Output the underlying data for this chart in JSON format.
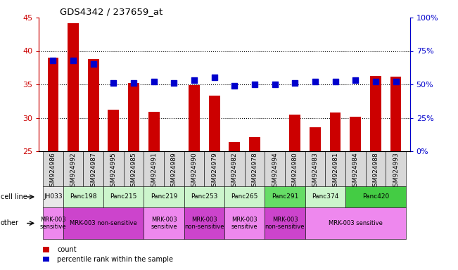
{
  "title": "GDS4342 / 237659_at",
  "samples": [
    "GSM924986",
    "GSM924992",
    "GSM924987",
    "GSM924995",
    "GSM924985",
    "GSM924991",
    "GSM924989",
    "GSM924990",
    "GSM924979",
    "GSM924982",
    "GSM924978",
    "GSM924994",
    "GSM924980",
    "GSM924983",
    "GSM924981",
    "GSM924984",
    "GSM924988",
    "GSM924993"
  ],
  "bar_values": [
    39.0,
    44.2,
    38.8,
    31.2,
    35.2,
    30.9,
    0.0,
    34.9,
    33.3,
    26.4,
    27.1,
    0.0,
    30.5,
    28.6,
    30.8,
    30.2,
    36.3,
    36.2
  ],
  "has_bar": [
    1,
    1,
    1,
    1,
    1,
    1,
    0,
    1,
    1,
    1,
    1,
    0,
    1,
    1,
    1,
    1,
    1,
    1
  ],
  "percentile_values": [
    68,
    68,
    65,
    51,
    51,
    52,
    51,
    53,
    55,
    49,
    50,
    50,
    51,
    52,
    52,
    53,
    52,
    52
  ],
  "bar_color": "#cc0000",
  "percentile_color": "#0000cc",
  "ylim_left": [
    25,
    45
  ],
  "ylim_right": [
    0,
    100
  ],
  "yticks_left": [
    25,
    30,
    35,
    40,
    45
  ],
  "yticks_right": [
    0,
    25,
    50,
    75,
    100
  ],
  "ytick_labels_left": [
    "25",
    "30",
    "35",
    "40",
    "45"
  ],
  "ytick_labels_right": [
    "0%",
    "25%",
    "50%",
    "75%",
    "100%"
  ],
  "hgrid_values": [
    30,
    35,
    40
  ],
  "cell_lines": [
    {
      "label": "JH033",
      "start": 0,
      "end": 1,
      "color": "#e8e8e8"
    },
    {
      "label": "Panc198",
      "start": 1,
      "end": 3,
      "color": "#ccf5cc"
    },
    {
      "label": "Panc215",
      "start": 3,
      "end": 5,
      "color": "#ccf5cc"
    },
    {
      "label": "Panc219",
      "start": 5,
      "end": 7,
      "color": "#ccf5cc"
    },
    {
      "label": "Panc253",
      "start": 7,
      "end": 9,
      "color": "#ccf5cc"
    },
    {
      "label": "Panc265",
      "start": 9,
      "end": 11,
      "color": "#ccf5cc"
    },
    {
      "label": "Panc291",
      "start": 11,
      "end": 13,
      "color": "#66dd66"
    },
    {
      "label": "Panc374",
      "start": 13,
      "end": 15,
      "color": "#ccf5cc"
    },
    {
      "label": "Panc420",
      "start": 15,
      "end": 18,
      "color": "#44cc44"
    }
  ],
  "other_groups": [
    {
      "label": "MRK-003\nsensitive",
      "start": 0,
      "end": 1,
      "color": "#ee88ee"
    },
    {
      "label": "MRK-003 non-sensitive",
      "start": 1,
      "end": 5,
      "color": "#cc44cc"
    },
    {
      "label": "MRK-003\nsensitive",
      "start": 5,
      "end": 7,
      "color": "#ee88ee"
    },
    {
      "label": "MRK-003\nnon-sensitive",
      "start": 7,
      "end": 9,
      "color": "#cc44cc"
    },
    {
      "label": "MRK-003\nsensitive",
      "start": 9,
      "end": 11,
      "color": "#ee88ee"
    },
    {
      "label": "MRK-003\nnon-sensitive",
      "start": 11,
      "end": 13,
      "color": "#cc44cc"
    },
    {
      "label": "MRK-003 sensitive",
      "start": 13,
      "end": 18,
      "color": "#ee88ee"
    }
  ],
  "n_samples": 18,
  "bar_width": 0.55,
  "dot_size": 30,
  "plot_bg": "#ffffff",
  "left_axis_color": "#cc0000",
  "right_axis_color": "#0000cc",
  "xlabel_bg": "#d8d8d8"
}
